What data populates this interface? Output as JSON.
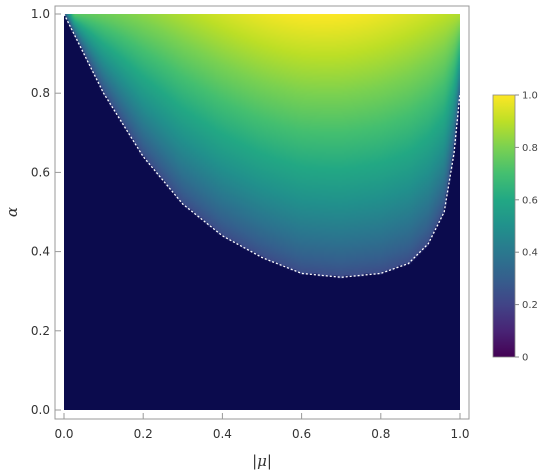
{
  "chart_data": {
    "type": "heatmap",
    "title": "",
    "xlabel": "|μ|",
    "ylabel": "α",
    "xlim": [
      0,
      1
    ],
    "ylim": [
      0,
      1
    ],
    "x_ticks": [
      "0.0",
      "0.2",
      "0.4",
      "0.6",
      "0.8",
      "1.0"
    ],
    "y_ticks": [
      "0.0",
      "0.2",
      "0.4",
      "0.6",
      "0.8",
      "1.0"
    ],
    "colorbar": {
      "range": [
        0,
        1
      ],
      "ticks": [
        "0",
        "0.2",
        "0.4",
        "0.6",
        "0.8",
        "1.0"
      ],
      "colormap": "viridis"
    },
    "boundary_curve": {
      "style": "white dashed",
      "points": [
        [
          0.0,
          1.0
        ],
        [
          0.02,
          0.96
        ],
        [
          0.05,
          0.9
        ],
        [
          0.1,
          0.8
        ],
        [
          0.15,
          0.72
        ],
        [
          0.2,
          0.64
        ],
        [
          0.3,
          0.52
        ],
        [
          0.4,
          0.44
        ],
        [
          0.5,
          0.385
        ],
        [
          0.6,
          0.345
        ],
        [
          0.7,
          0.335
        ],
        [
          0.8,
          0.345
        ],
        [
          0.87,
          0.37
        ],
        [
          0.92,
          0.42
        ],
        [
          0.96,
          0.5
        ],
        [
          0.985,
          0.65
        ],
        [
          1.0,
          0.8
        ]
      ]
    },
    "grid": false,
    "legend": "colorbar at right"
  }
}
